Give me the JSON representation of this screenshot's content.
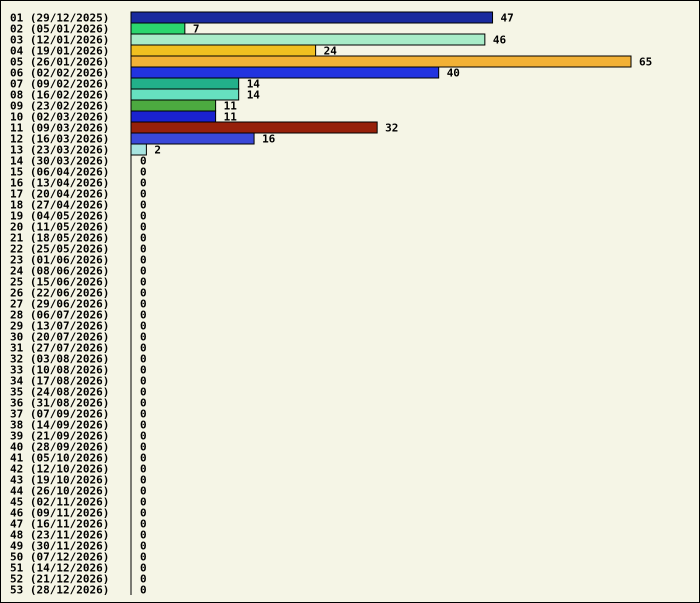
{
  "chart_data": {
    "type": "bar",
    "orientation": "horizontal",
    "title": "",
    "xlabel": "",
    "ylabel": "",
    "grid": false,
    "xlim": [
      0,
      65
    ],
    "categories": [
      "01 (29/12/2025)",
      "02 (05/01/2026)",
      "03 (12/01/2026)",
      "04 (19/01/2026)",
      "05 (26/01/2026)",
      "06 (02/02/2026)",
      "07 (09/02/2026)",
      "08 (16/02/2026)",
      "09 (23/02/2026)",
      "10 (02/03/2026)",
      "11 (09/03/2026)",
      "12 (16/03/2026)",
      "13 (23/03/2026)",
      "14 (30/03/2026)",
      "15 (06/04/2026)",
      "16 (13/04/2026)",
      "17 (20/04/2026)",
      "18 (27/04/2026)",
      "19 (04/05/2026)",
      "20 (11/05/2026)",
      "21 (18/05/2026)",
      "22 (25/05/2026)",
      "23 (01/06/2026)",
      "24 (08/06/2026)",
      "25 (15/06/2026)",
      "26 (22/06/2026)",
      "27 (29/06/2026)",
      "28 (06/07/2026)",
      "29 (13/07/2026)",
      "30 (20/07/2026)",
      "31 (27/07/2026)",
      "32 (03/08/2026)",
      "33 (10/08/2026)",
      "34 (17/08/2026)",
      "35 (24/08/2026)",
      "36 (31/08/2026)",
      "37 (07/09/2026)",
      "38 (14/09/2026)",
      "39 (21/09/2026)",
      "40 (28/09/2026)",
      "41 (05/10/2026)",
      "42 (12/10/2026)",
      "43 (19/10/2026)",
      "44 (26/10/2026)",
      "45 (02/11/2026)",
      "46 (09/11/2026)",
      "47 (16/11/2026)",
      "48 (23/11/2026)",
      "49 (30/11/2026)",
      "50 (07/12/2026)",
      "51 (14/12/2026)",
      "52 (21/12/2026)",
      "53 (28/12/2026)"
    ],
    "values": [
      47,
      7,
      46,
      24,
      65,
      40,
      14,
      14,
      11,
      11,
      32,
      16,
      2,
      0,
      0,
      0,
      0,
      0,
      0,
      0,
      0,
      0,
      0,
      0,
      0,
      0,
      0,
      0,
      0,
      0,
      0,
      0,
      0,
      0,
      0,
      0,
      0,
      0,
      0,
      0,
      0,
      0,
      0,
      0,
      0,
      0,
      0,
      0,
      0,
      0,
      0,
      0,
      0
    ],
    "colors": [
      "#1a2a9e",
      "#2bd66e",
      "#a8ecc8",
      "#f0c020",
      "#f2b136",
      "#2233e0",
      "#22b08a",
      "#66e0c0",
      "#4caa40",
      "#1a22d0",
      "#96200a",
      "#3a48d8",
      "#a8e4e0"
    ],
    "axis_color": "#000000",
    "bar_outline": "#000000"
  }
}
